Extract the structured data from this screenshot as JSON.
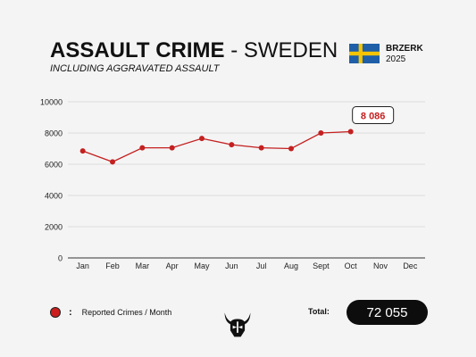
{
  "header": {
    "title_bold": "ASSAULT CRIME",
    "title_sep": " - ",
    "title_country": "SWEDEN",
    "subtitle": "INCLUDING AGGRAVATED ASSAULT",
    "brand_name": "BRZERK",
    "brand_year": "2025",
    "flag_icon": "sweden-flag-icon"
  },
  "colors": {
    "series": "#c42020",
    "flag_blue": "#1f5fa8",
    "flag_yellow": "#f6c400",
    "pill": "#0d0d0d"
  },
  "chart_data": {
    "type": "line",
    "categories": [
      "Jan",
      "Feb",
      "Mar",
      "Apr",
      "May",
      "Jun",
      "Jul",
      "Aug",
      "Sept",
      "Oct",
      "Nov",
      "Dec"
    ],
    "series": [
      {
        "name": "Reported Crimes / Month",
        "values": [
          6850,
          6150,
          7050,
          7050,
          7650,
          7250,
          7050,
          7000,
          8000,
          8086,
          null,
          null
        ]
      }
    ],
    "y_ticks": [
      0,
      2000,
      4000,
      6000,
      8000,
      10000
    ],
    "ylim": [
      0,
      10000
    ],
    "grid": true,
    "legend_position": "bottom-left",
    "callout": {
      "category": "Oct",
      "text": "8 086"
    }
  },
  "legend": {
    "colon": ":",
    "label": "Reported Crimes / Month"
  },
  "footer": {
    "total_label": "Total:",
    "total_value": "72 055",
    "logo_icon": "viking-helmet-logo-icon"
  }
}
